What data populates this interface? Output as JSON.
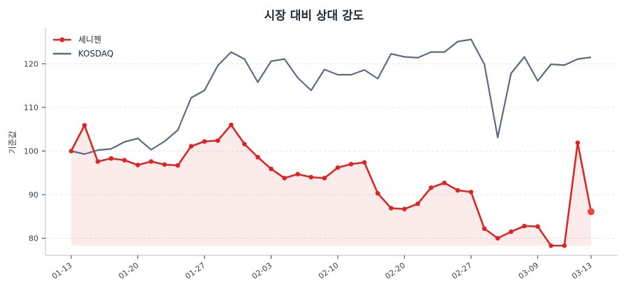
{
  "chart_data": {
    "type": "line",
    "title": "시장 대비 상대 강도",
    "xlabel": "",
    "ylabel": "기준값",
    "ylim": [
      76.3,
      128.5
    ],
    "yticks": [
      80,
      90,
      100,
      110,
      120
    ],
    "grid": true,
    "legend_position": "upper left",
    "x_tick_labels": [
      "01-13",
      "01-20",
      "01-27",
      "02-03",
      "02-10",
      "02-20",
      "02-27",
      "03-09",
      "03-13"
    ],
    "x_tick_indices": [
      0,
      5,
      10,
      15,
      20,
      25,
      30,
      35,
      39
    ],
    "point_count": 40,
    "series": [
      {
        "name": "세니젠",
        "color": "#dc2626",
        "marker": "circle",
        "fill_to_min": true,
        "values": [
          100.0,
          105.9,
          97.6,
          98.3,
          97.9,
          96.8,
          97.6,
          96.9,
          96.7,
          101.1,
          102.2,
          102.4,
          106.0,
          101.6,
          98.6,
          95.9,
          93.8,
          94.7,
          94.0,
          93.8,
          96.2,
          97.0,
          97.4,
          90.3,
          86.9,
          86.7,
          87.9,
          91.6,
          92.7,
          91.0,
          90.6,
          82.2,
          80.0,
          81.5,
          82.8,
          82.7,
          78.3,
          78.3,
          101.9,
          86.1
        ]
      },
      {
        "name": "KOSDAQ",
        "color": "#5b6b82",
        "marker": "none",
        "values": [
          100.0,
          99.3,
          100.2,
          100.5,
          102.1,
          102.9,
          100.3,
          102.2,
          104.8,
          112.2,
          113.9,
          119.6,
          122.7,
          121.1,
          115.8,
          120.6,
          121.1,
          116.8,
          113.9,
          118.7,
          117.5,
          117.5,
          118.6,
          116.6,
          122.3,
          121.6,
          121.4,
          122.7,
          122.7,
          125.1,
          125.6,
          119.9,
          103.1,
          117.8,
          121.6,
          116.1,
          119.9,
          119.7,
          121.1,
          121.5
        ]
      }
    ]
  }
}
